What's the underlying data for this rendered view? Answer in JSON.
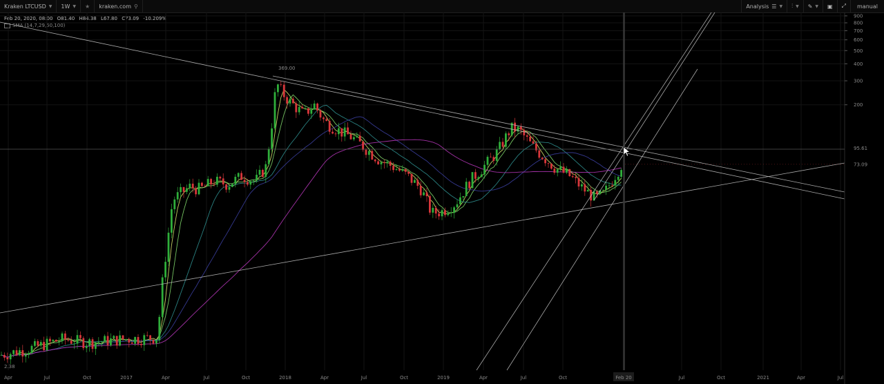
{
  "toolbar": {
    "symbol": "Kraken LTCUSD",
    "interval": "1W",
    "source": "kraken.com",
    "analysis": "Analysis",
    "mode": "manual",
    "icons": {
      "star": "star-icon",
      "link": "link-icon",
      "settings": "sliders-icon",
      "chart_type": "candles-icon",
      "draw": "pencil-icon",
      "save": "save-icon",
      "expand": "expand-icon"
    }
  },
  "legend": {
    "date": "Feb 20, 2020, 08:00",
    "open": "O81.40",
    "high": "H84.38",
    "low": "L67.80",
    "close": "C73.09",
    "change": "-10.209%",
    "indicator": "SMA (14,7,29,50,100)"
  },
  "colors": {
    "up": "#2fae3a",
    "down": "#d8363a",
    "sma_fast": "#d7e36b",
    "sma_2": "#7fd66a",
    "sma_3": "#2f8f8f",
    "sma_4": "#3b3fa0",
    "sma_5": "#b536b8",
    "trend": "#c9c9c9"
  },
  "chart_data": {
    "type": "candlestick",
    "y_scale": "log",
    "ylim": [
      2.38,
      900
    ],
    "y_ticks": [
      "900",
      "800",
      "700",
      "600",
      "500",
      "400",
      "300",
      "200"
    ],
    "x_ticks": [
      "Apr",
      "Jul",
      "Oct",
      "2017",
      "Apr",
      "Jul",
      "Oct",
      "2018",
      "Apr",
      "Jul",
      "Oct",
      "2019",
      "Apr",
      "Jul",
      "Oct",
      "Feb 20",
      "Jul",
      "Oct",
      "2021",
      "Apr",
      "Jul"
    ],
    "labels": {
      "ath": "369.00",
      "crosshair_price": "95.61",
      "last_price": "73.09",
      "min_price": "2.38"
    }
  }
}
